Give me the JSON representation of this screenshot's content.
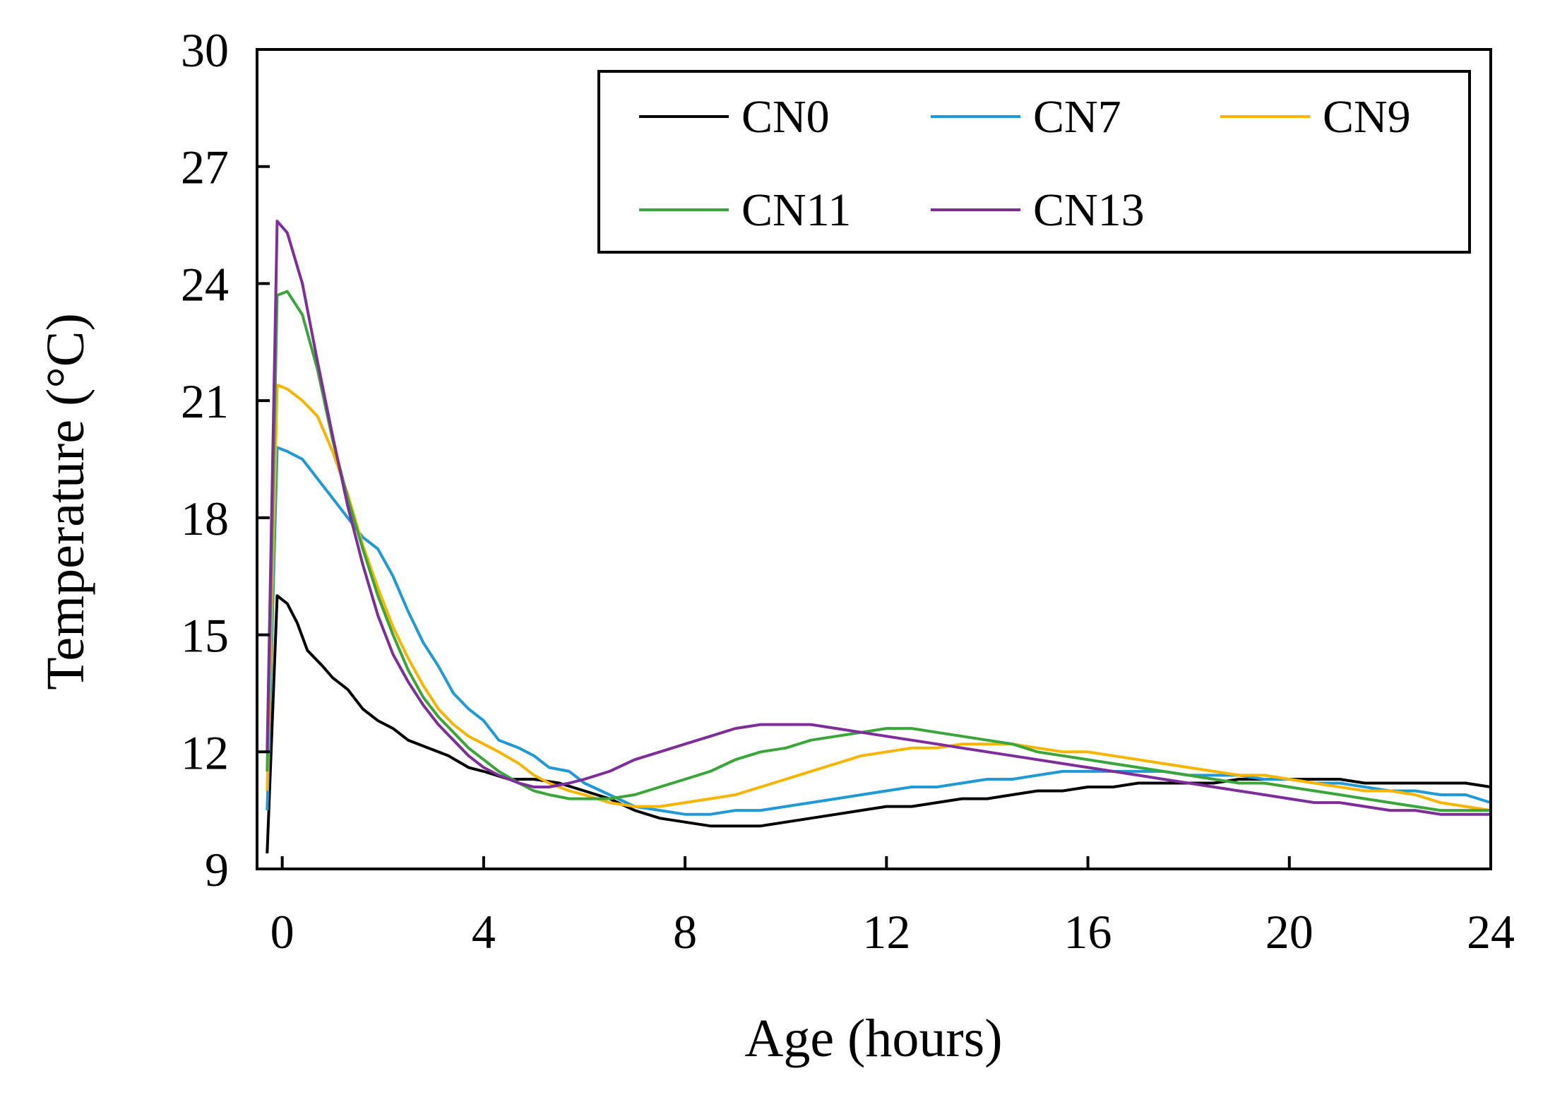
{
  "chart_data": {
    "type": "line",
    "xlabel": "Age (hours)",
    "ylabel": "Temperature (°C)",
    "xlim": [
      -0.5,
      24
    ],
    "ylim": [
      9,
      30
    ],
    "xticks": [
      0,
      4,
      8,
      12,
      16,
      20,
      24
    ],
    "yticks": [
      9,
      12,
      15,
      18,
      21,
      24,
      27,
      30
    ],
    "grid": false,
    "legend_position": "top-right",
    "series": [
      {
        "name": "CN0",
        "color": "#000000",
        "points": [
          [
            -0.3,
            9.4
          ],
          [
            -0.1,
            16.0
          ],
          [
            0.1,
            15.8
          ],
          [
            0.3,
            15.3
          ],
          [
            0.5,
            14.6
          ],
          [
            0.8,
            14.2
          ],
          [
            1.0,
            13.9
          ],
          [
            1.3,
            13.6
          ],
          [
            1.6,
            13.1
          ],
          [
            1.9,
            12.8
          ],
          [
            2.2,
            12.6
          ],
          [
            2.5,
            12.3
          ],
          [
            2.9,
            12.1
          ],
          [
            3.3,
            11.9
          ],
          [
            3.7,
            11.6
          ],
          [
            4.0,
            11.5
          ],
          [
            4.5,
            11.3
          ],
          [
            5.0,
            11.3
          ],
          [
            5.5,
            11.2
          ],
          [
            6.0,
            11.0
          ],
          [
            6.5,
            10.8
          ],
          [
            7.0,
            10.5
          ],
          [
            7.5,
            10.3
          ],
          [
            8.0,
            10.2
          ],
          [
            8.5,
            10.1
          ],
          [
            9.0,
            10.1
          ],
          [
            9.5,
            10.1
          ],
          [
            10.0,
            10.2
          ],
          [
            10.5,
            10.3
          ],
          [
            11.0,
            10.4
          ],
          [
            11.5,
            10.5
          ],
          [
            12.0,
            10.6
          ],
          [
            12.5,
            10.6
          ],
          [
            13.0,
            10.7
          ],
          [
            13.5,
            10.8
          ],
          [
            14.0,
            10.8
          ],
          [
            14.5,
            10.9
          ],
          [
            15.0,
            11.0
          ],
          [
            15.5,
            11.0
          ],
          [
            16.0,
            11.1
          ],
          [
            16.5,
            11.1
          ],
          [
            17.0,
            11.2
          ],
          [
            17.5,
            11.2
          ],
          [
            18.0,
            11.2
          ],
          [
            18.5,
            11.2
          ],
          [
            19.0,
            11.3
          ],
          [
            19.5,
            11.3
          ],
          [
            20.0,
            11.3
          ],
          [
            20.5,
            11.3
          ],
          [
            21.0,
            11.3
          ],
          [
            21.5,
            11.2
          ],
          [
            22.0,
            11.2
          ],
          [
            22.5,
            11.2
          ],
          [
            23.0,
            11.2
          ],
          [
            23.5,
            11.2
          ],
          [
            24.0,
            11.1
          ]
        ]
      },
      {
        "name": "CN7",
        "color": "#1f9ad6",
        "points": [
          [
            -0.3,
            10.5
          ],
          [
            -0.1,
            19.8
          ],
          [
            0.1,
            19.7
          ],
          [
            0.4,
            19.5
          ],
          [
            0.7,
            19.0
          ],
          [
            1.0,
            18.5
          ],
          [
            1.3,
            18.0
          ],
          [
            1.6,
            17.5
          ],
          [
            1.9,
            17.2
          ],
          [
            2.2,
            16.5
          ],
          [
            2.5,
            15.6
          ],
          [
            2.8,
            14.8
          ],
          [
            3.1,
            14.2
          ],
          [
            3.4,
            13.5
          ],
          [
            3.7,
            13.1
          ],
          [
            4.0,
            12.8
          ],
          [
            4.3,
            12.3
          ],
          [
            4.7,
            12.1
          ],
          [
            5.0,
            11.9
          ],
          [
            5.3,
            11.6
          ],
          [
            5.7,
            11.5
          ],
          [
            6.0,
            11.2
          ],
          [
            6.5,
            10.9
          ],
          [
            7.0,
            10.6
          ],
          [
            7.5,
            10.5
          ],
          [
            8.0,
            10.4
          ],
          [
            8.5,
            10.4
          ],
          [
            9.0,
            10.5
          ],
          [
            9.5,
            10.5
          ],
          [
            10.0,
            10.6
          ],
          [
            10.5,
            10.7
          ],
          [
            11.0,
            10.8
          ],
          [
            11.5,
            10.9
          ],
          [
            12.0,
            11.0
          ],
          [
            12.5,
            11.1
          ],
          [
            13.0,
            11.1
          ],
          [
            13.5,
            11.2
          ],
          [
            14.0,
            11.3
          ],
          [
            14.5,
            11.3
          ],
          [
            15.0,
            11.4
          ],
          [
            15.5,
            11.5
          ],
          [
            16.0,
            11.5
          ],
          [
            16.5,
            11.5
          ],
          [
            17.0,
            11.5
          ],
          [
            17.5,
            11.5
          ],
          [
            18.0,
            11.4
          ],
          [
            18.5,
            11.4
          ],
          [
            19.0,
            11.4
          ],
          [
            19.5,
            11.3
          ],
          [
            20.0,
            11.3
          ],
          [
            20.5,
            11.2
          ],
          [
            21.0,
            11.2
          ],
          [
            21.5,
            11.1
          ],
          [
            22.0,
            11.0
          ],
          [
            22.5,
            11.0
          ],
          [
            23.0,
            10.9
          ],
          [
            23.5,
            10.9
          ],
          [
            24.0,
            10.7
          ]
        ]
      },
      {
        "name": "CN9",
        "color": "#f7b500",
        "points": [
          [
            -0.3,
            11.0
          ],
          [
            -0.1,
            21.4
          ],
          [
            0.1,
            21.3
          ],
          [
            0.4,
            21.0
          ],
          [
            0.7,
            20.6
          ],
          [
            1.0,
            19.7
          ],
          [
            1.3,
            18.6
          ],
          [
            1.6,
            17.3
          ],
          [
            1.9,
            16.2
          ],
          [
            2.2,
            15.2
          ],
          [
            2.5,
            14.4
          ],
          [
            2.8,
            13.7
          ],
          [
            3.1,
            13.1
          ],
          [
            3.4,
            12.7
          ],
          [
            3.7,
            12.4
          ],
          [
            4.0,
            12.2
          ],
          [
            4.3,
            12.0
          ],
          [
            4.7,
            11.7
          ],
          [
            5.0,
            11.4
          ],
          [
            5.3,
            11.2
          ],
          [
            5.7,
            11.0
          ],
          [
            6.0,
            10.9
          ],
          [
            6.5,
            10.7
          ],
          [
            7.0,
            10.6
          ],
          [
            7.5,
            10.6
          ],
          [
            8.0,
            10.7
          ],
          [
            8.5,
            10.8
          ],
          [
            9.0,
            10.9
          ],
          [
            9.5,
            11.1
          ],
          [
            10.0,
            11.3
          ],
          [
            10.5,
            11.5
          ],
          [
            11.0,
            11.7
          ],
          [
            11.5,
            11.9
          ],
          [
            12.0,
            12.0
          ],
          [
            12.5,
            12.1
          ],
          [
            13.0,
            12.1
          ],
          [
            13.5,
            12.2
          ],
          [
            14.0,
            12.2
          ],
          [
            14.5,
            12.2
          ],
          [
            15.0,
            12.1
          ],
          [
            15.5,
            12.0
          ],
          [
            16.0,
            12.0
          ],
          [
            16.5,
            11.9
          ],
          [
            17.0,
            11.8
          ],
          [
            17.5,
            11.7
          ],
          [
            18.0,
            11.6
          ],
          [
            18.5,
            11.5
          ],
          [
            19.0,
            11.4
          ],
          [
            19.5,
            11.4
          ],
          [
            20.0,
            11.3
          ],
          [
            20.5,
            11.2
          ],
          [
            21.0,
            11.1
          ],
          [
            21.5,
            11.0
          ],
          [
            22.0,
            11.0
          ],
          [
            22.5,
            10.9
          ],
          [
            23.0,
            10.7
          ],
          [
            23.5,
            10.6
          ],
          [
            24.0,
            10.5
          ]
        ]
      },
      {
        "name": "CN11",
        "color": "#3aa63a",
        "points": [
          [
            -0.3,
            11.5
          ],
          [
            -0.1,
            23.7
          ],
          [
            0.1,
            23.8
          ],
          [
            0.4,
            23.2
          ],
          [
            0.7,
            21.8
          ],
          [
            1.0,
            20.0
          ],
          [
            1.3,
            18.5
          ],
          [
            1.6,
            17.2
          ],
          [
            1.9,
            16.0
          ],
          [
            2.2,
            15.0
          ],
          [
            2.5,
            14.1
          ],
          [
            2.8,
            13.4
          ],
          [
            3.1,
            12.9
          ],
          [
            3.4,
            12.5
          ],
          [
            3.7,
            12.1
          ],
          [
            4.0,
            11.8
          ],
          [
            4.3,
            11.5
          ],
          [
            4.7,
            11.2
          ],
          [
            5.0,
            11.0
          ],
          [
            5.3,
            10.9
          ],
          [
            5.7,
            10.8
          ],
          [
            6.0,
            10.8
          ],
          [
            6.5,
            10.8
          ],
          [
            7.0,
            10.9
          ],
          [
            7.5,
            11.1
          ],
          [
            8.0,
            11.3
          ],
          [
            8.5,
            11.5
          ],
          [
            9.0,
            11.8
          ],
          [
            9.5,
            12.0
          ],
          [
            10.0,
            12.1
          ],
          [
            10.5,
            12.3
          ],
          [
            11.0,
            12.4
          ],
          [
            11.5,
            12.5
          ],
          [
            12.0,
            12.6
          ],
          [
            12.5,
            12.6
          ],
          [
            13.0,
            12.5
          ],
          [
            13.5,
            12.4
          ],
          [
            14.0,
            12.3
          ],
          [
            14.5,
            12.2
          ],
          [
            15.0,
            12.0
          ],
          [
            15.5,
            11.9
          ],
          [
            16.0,
            11.8
          ],
          [
            16.5,
            11.7
          ],
          [
            17.0,
            11.6
          ],
          [
            17.5,
            11.5
          ],
          [
            18.0,
            11.4
          ],
          [
            18.5,
            11.3
          ],
          [
            19.0,
            11.2
          ],
          [
            19.5,
            11.2
          ],
          [
            20.0,
            11.1
          ],
          [
            20.5,
            11.0
          ],
          [
            21.0,
            10.9
          ],
          [
            21.5,
            10.8
          ],
          [
            22.0,
            10.7
          ],
          [
            22.5,
            10.6
          ],
          [
            23.0,
            10.5
          ],
          [
            23.5,
            10.5
          ],
          [
            24.0,
            10.5
          ]
        ]
      },
      {
        "name": "CN13",
        "color": "#7e2d9b",
        "points": [
          [
            -0.3,
            12.0
          ],
          [
            -0.1,
            25.6
          ],
          [
            0.1,
            25.3
          ],
          [
            0.4,
            24.0
          ],
          [
            0.7,
            22.0
          ],
          [
            1.0,
            20.1
          ],
          [
            1.3,
            18.3
          ],
          [
            1.6,
            16.8
          ],
          [
            1.9,
            15.5
          ],
          [
            2.2,
            14.5
          ],
          [
            2.5,
            13.8
          ],
          [
            2.8,
            13.2
          ],
          [
            3.1,
            12.7
          ],
          [
            3.4,
            12.3
          ],
          [
            3.7,
            11.9
          ],
          [
            4.0,
            11.6
          ],
          [
            4.3,
            11.4
          ],
          [
            4.7,
            11.2
          ],
          [
            5.0,
            11.1
          ],
          [
            5.3,
            11.1
          ],
          [
            5.7,
            11.2
          ],
          [
            6.0,
            11.3
          ],
          [
            6.5,
            11.5
          ],
          [
            7.0,
            11.8
          ],
          [
            7.5,
            12.0
          ],
          [
            8.0,
            12.2
          ],
          [
            8.5,
            12.4
          ],
          [
            9.0,
            12.6
          ],
          [
            9.5,
            12.7
          ],
          [
            10.0,
            12.7
          ],
          [
            10.5,
            12.7
          ],
          [
            11.0,
            12.6
          ],
          [
            11.5,
            12.5
          ],
          [
            12.0,
            12.4
          ],
          [
            12.5,
            12.3
          ],
          [
            13.0,
            12.2
          ],
          [
            13.5,
            12.1
          ],
          [
            14.0,
            12.0
          ],
          [
            14.5,
            11.9
          ],
          [
            15.0,
            11.8
          ],
          [
            15.5,
            11.7
          ],
          [
            16.0,
            11.6
          ],
          [
            16.5,
            11.5
          ],
          [
            17.0,
            11.4
          ],
          [
            17.5,
            11.3
          ],
          [
            18.0,
            11.2
          ],
          [
            18.5,
            11.1
          ],
          [
            19.0,
            11.0
          ],
          [
            19.5,
            10.9
          ],
          [
            20.0,
            10.8
          ],
          [
            20.5,
            10.7
          ],
          [
            21.0,
            10.7
          ],
          [
            21.5,
            10.6
          ],
          [
            22.0,
            10.5
          ],
          [
            22.5,
            10.5
          ],
          [
            23.0,
            10.4
          ],
          [
            23.5,
            10.4
          ],
          [
            24.0,
            10.4
          ]
        ]
      }
    ]
  }
}
